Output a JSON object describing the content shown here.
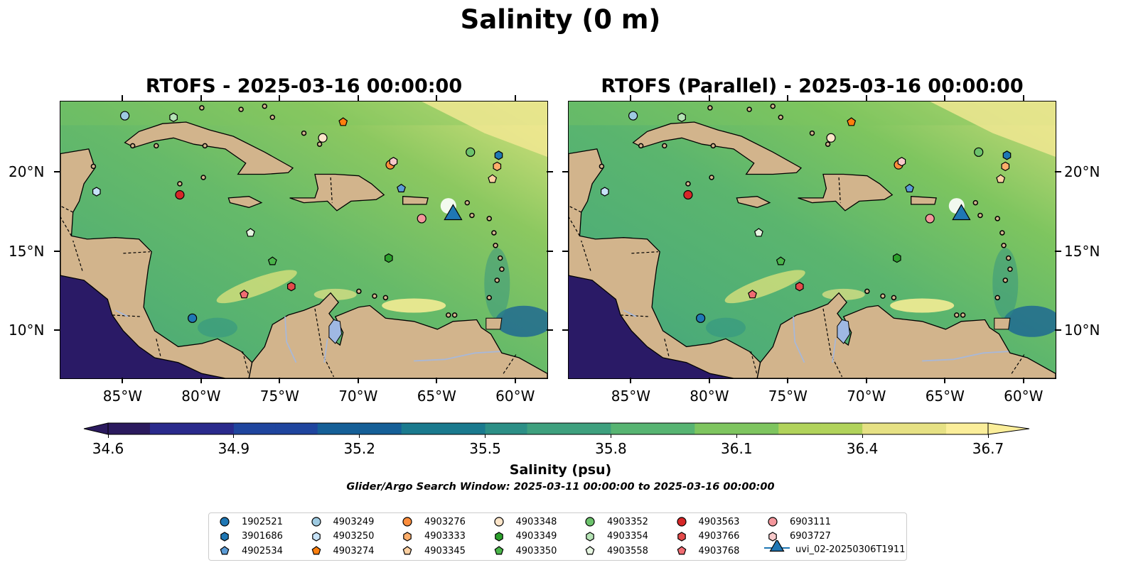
{
  "title": "Salinity (0 m)",
  "panels": [
    {
      "title": "RTOFS - 2025-03-16 00:00:00"
    },
    {
      "title": "RTOFS (Parallel) - 2025-03-16 00:00:00"
    }
  ],
  "axes": {
    "lon_labels": [
      "85°W",
      "80°W",
      "75°W",
      "70°W",
      "65°W",
      "60°W"
    ],
    "lon_values": [
      -85,
      -80,
      -75,
      -70,
      -65,
      -60
    ],
    "lat_labels": [
      "20°N",
      "15°N",
      "10°N"
    ],
    "lat_values": [
      20,
      15,
      10
    ],
    "lon_range": [
      -89,
      -58
    ],
    "lat_range": [
      7,
      24.5
    ]
  },
  "colorbar": {
    "label": "Salinity (psu)",
    "ticks": [
      "34.6",
      "34.9",
      "35.2",
      "35.5",
      "35.8",
      "36.1",
      "36.4",
      "36.7"
    ],
    "range": [
      34.6,
      36.7
    ],
    "extend": "both",
    "colormap": [
      "#2b1a5e",
      "#2a2a8c",
      "#1f459e",
      "#155f97",
      "#1a7a8e",
      "#2c8f86",
      "#3ea07e",
      "#57b472",
      "#7ec55f",
      "#b1d35b",
      "#e6e184",
      "#fbee9a"
    ]
  },
  "search_window": "Glider/Argo Search Window: 2025-03-11 00:00:00 to 2025-03-16 00:00:00",
  "colors": {
    "land": "#d2b48c",
    "pacific": "#2a1a66",
    "lakes": "#9fb8e3",
    "rivers": "#a8b8d8"
  },
  "floats": [
    {
      "id": "1902521",
      "marker": "circle",
      "color": "#1f77b4",
      "lon": -80.6,
      "lat": 10.8
    },
    {
      "id": "3901686",
      "marker": "hexagon",
      "color": "#1f77b4",
      "lon": -61.1,
      "lat": 21.1
    },
    {
      "id": "4902534",
      "marker": "pentagon",
      "color": "#5b9bd5",
      "lon": -67.3,
      "lat": 19.0
    },
    {
      "id": "4903249",
      "marker": "circle",
      "color": "#9ecae1",
      "lon": -84.9,
      "lat": 23.6
    },
    {
      "id": "4903250",
      "marker": "hexagon",
      "color": "#c6e2f7",
      "lon": -86.7,
      "lat": 18.8
    },
    {
      "id": "4903274",
      "marker": "pentagon",
      "color": "#fd7f0e",
      "lon": -71.0,
      "lat": 23.2
    },
    {
      "id": "4903276",
      "marker": "circle",
      "color": "#fd8d3c",
      "lon": -68.0,
      "lat": 20.5
    },
    {
      "id": "4903333",
      "marker": "hexagon",
      "color": "#fdae6b",
      "lon": -61.2,
      "lat": 20.4
    },
    {
      "id": "4903345",
      "marker": "pentagon",
      "color": "#fdd0a2",
      "lon": -61.5,
      "lat": 19.6
    },
    {
      "id": "4903348",
      "marker": "circle",
      "color": "#fde5c9",
      "lon": -72.3,
      "lat": 22.2
    },
    {
      "id": "4903349",
      "marker": "hexagon",
      "color": "#2ca02c",
      "lon": -68.1,
      "lat": 14.6
    },
    {
      "id": "4903350",
      "marker": "pentagon",
      "color": "#4ab54a",
      "lon": -75.5,
      "lat": 14.4
    },
    {
      "id": "4903352",
      "marker": "circle",
      "color": "#6cc26c",
      "lon": -62.9,
      "lat": 21.3
    },
    {
      "id": "4903354",
      "marker": "hexagon",
      "color": "#b5e3b5",
      "lon": -81.8,
      "lat": 23.5
    },
    {
      "id": "4903558",
      "marker": "pentagon",
      "color": "#e5f5e0",
      "lon": -76.9,
      "lat": 16.2
    },
    {
      "id": "4903563",
      "marker": "circle",
      "color": "#d62728",
      "lon": -81.4,
      "lat": 18.6
    },
    {
      "id": "4903766",
      "marker": "hexagon",
      "color": "#e34a4a",
      "lon": -74.3,
      "lat": 12.8
    },
    {
      "id": "4903768",
      "marker": "pentagon",
      "color": "#f06c72",
      "lon": -77.3,
      "lat": 12.3
    },
    {
      "id": "6903111",
      "marker": "circle",
      "color": "#f4979c",
      "lon": -66.0,
      "lat": 17.1
    },
    {
      "id": "6903727",
      "marker": "hexagon",
      "color": "#f7c9ca",
      "lon": -67.8,
      "lat": 20.7
    }
  ],
  "glider": {
    "id": "uvi_02-20250306T1911",
    "marker": "triangle",
    "color": "#1f77b4",
    "lon": -64.0,
    "lat": 17.3
  }
}
